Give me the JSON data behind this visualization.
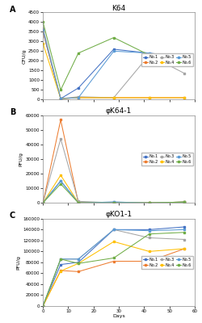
{
  "panel_A": {
    "title": "K64",
    "ylabel": "CFU/g",
    "xlabel": "Days",
    "ylim": [
      0,
      4500
    ],
    "yticks": [
      0,
      500,
      1000,
      1500,
      2000,
      2500,
      3000,
      3500,
      4000,
      4500
    ],
    "xlim": [
      0,
      60
    ],
    "xticks": [
      0,
      10,
      20,
      30,
      40,
      50,
      60
    ],
    "series": {
      "No.1": {
        "x": [
          0,
          7,
          14,
          28,
          42,
          56
        ],
        "y": [
          3500,
          50,
          600,
          2600,
          2400,
          2200
        ],
        "color": "#4472C4",
        "marker": "s"
      },
      "No.2": {
        "x": [
          0,
          7,
          14,
          28,
          42,
          56
        ],
        "y": [
          3500,
          50,
          100,
          100,
          100,
          100
        ],
        "color": "#ED7D31",
        "marker": "s"
      },
      "No.3": {
        "x": [
          0,
          7,
          14,
          28,
          42,
          56
        ],
        "y": [
          3700,
          50,
          150,
          100,
          2300,
          1350
        ],
        "color": "#A5A5A5",
        "marker": "s"
      },
      "No.4": {
        "x": [
          0,
          7,
          14,
          28,
          42,
          56
        ],
        "y": [
          2900,
          50,
          100,
          100,
          100,
          100
        ],
        "color": "#FFC000",
        "marker": "s"
      },
      "No.5": {
        "x": [
          0,
          7,
          14,
          28,
          42,
          56
        ],
        "y": [
          3600,
          50,
          100,
          2500,
          2400,
          2100
        ],
        "color": "#5B9BD5",
        "marker": "s"
      },
      "No.6": {
        "x": [
          0,
          7,
          14,
          28,
          42,
          56
        ],
        "y": [
          4000,
          500,
          2400,
          3200,
          2300,
          1950
        ],
        "color": "#70AD47",
        "marker": "s"
      }
    }
  },
  "panel_B": {
    "title": "φK64-1",
    "ylabel": "PFU/g",
    "xlabel": "Days",
    "ylim": [
      0,
      60000
    ],
    "yticks": [
      0,
      10000,
      20000,
      30000,
      40000,
      50000,
      60000
    ],
    "xlim": [
      0,
      60
    ],
    "xticks": [
      0,
      10,
      20,
      30,
      40,
      50,
      60
    ],
    "series": {
      "No.1": {
        "x": [
          0,
          7,
          14,
          28,
          42,
          56
        ],
        "y": [
          0,
          15000,
          0,
          500,
          0,
          500
        ],
        "color": "#4472C4",
        "marker": "s"
      },
      "No.2": {
        "x": [
          0,
          7,
          14,
          28,
          42,
          56
        ],
        "y": [
          0,
          57000,
          0,
          0,
          0,
          500
        ],
        "color": "#ED7D31",
        "marker": "s"
      },
      "No.3": {
        "x": [
          0,
          7,
          14,
          28,
          42,
          56
        ],
        "y": [
          0,
          44000,
          1000,
          0,
          0,
          500
        ],
        "color": "#A5A5A5",
        "marker": "s"
      },
      "No.4": {
        "x": [
          0,
          7,
          14,
          28,
          42,
          56
        ],
        "y": [
          0,
          19000,
          0,
          0,
          0,
          500
        ],
        "color": "#FFC000",
        "marker": "s"
      },
      "No.5": {
        "x": [
          0,
          7,
          14,
          28,
          42,
          56
        ],
        "y": [
          0,
          15000,
          0,
          500,
          0,
          500
        ],
        "color": "#5B9BD5",
        "marker": "s"
      },
      "No.6": {
        "x": [
          0,
          7,
          14,
          28,
          42,
          56
        ],
        "y": [
          0,
          13000,
          0,
          0,
          0,
          500
        ],
        "color": "#70AD47",
        "marker": "s"
      }
    }
  },
  "panel_C": {
    "title": "φKO1-1",
    "ylabel": "PFU/g",
    "xlabel": "Days",
    "ylim": [
      0,
      160000
    ],
    "yticks": [
      0,
      20000,
      40000,
      60000,
      80000,
      100000,
      120000,
      140000,
      160000
    ],
    "xlim": [
      0,
      60
    ],
    "xticks": [
      0,
      10,
      20,
      30,
      40,
      50,
      60
    ],
    "series": {
      "No.1": {
        "x": [
          0,
          7,
          14,
          28,
          42,
          56
        ],
        "y": [
          0,
          76000,
          80000,
          140000,
          140000,
          145000
        ],
        "color": "#4472C4",
        "marker": "s"
      },
      "No.2": {
        "x": [
          0,
          7,
          14,
          28,
          42,
          56
        ],
        "y": [
          0,
          65000,
          63000,
          82000,
          82000,
          105000
        ],
        "color": "#ED7D31",
        "marker": "s"
      },
      "No.3": {
        "x": [
          0,
          7,
          14,
          28,
          42,
          56
        ],
        "y": [
          0,
          86000,
          86000,
          140000,
          125000,
          122000
        ],
        "color": "#A5A5A5",
        "marker": "s"
      },
      "No.4": {
        "x": [
          0,
          7,
          14,
          28,
          42,
          56
        ],
        "y": [
          0,
          64000,
          78000,
          118000,
          100000,
          105000
        ],
        "color": "#FFC000",
        "marker": "s"
      },
      "No.5": {
        "x": [
          0,
          7,
          14,
          28,
          42,
          56
        ],
        "y": [
          0,
          86000,
          86000,
          140000,
          138000,
          140000
        ],
        "color": "#5B9BD5",
        "marker": "s"
      },
      "No.6": {
        "x": [
          0,
          7,
          14,
          28,
          42,
          56
        ],
        "y": [
          0,
          86000,
          78000,
          88000,
          132000,
          135000
        ],
        "color": "#70AD47",
        "marker": "s"
      }
    }
  },
  "legend_order": [
    "No.1",
    "No.2",
    "No.3",
    "No.4",
    "No.5",
    "No.6"
  ],
  "background_color": "#ffffff",
  "panel_labels": [
    "A",
    "B",
    "C"
  ]
}
